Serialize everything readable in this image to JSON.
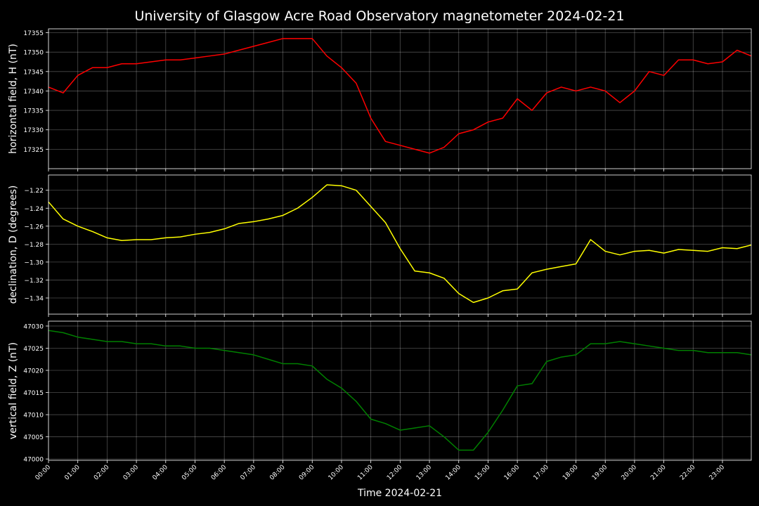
{
  "title": "University of Glasgow Acre Road Observatory magnetometer 2024-02-21",
  "chart_data": [
    {
      "type": "line",
      "ylabel": "horizontal field, H (nT)",
      "color": "#ff0000",
      "grid": true,
      "x": [
        "00:00",
        "00:30",
        "01:00",
        "01:30",
        "02:00",
        "02:30",
        "03:00",
        "03:30",
        "04:00",
        "04:30",
        "05:00",
        "05:30",
        "06:00",
        "06:30",
        "07:00",
        "07:30",
        "08:00",
        "08:30",
        "09:00",
        "09:30",
        "10:00",
        "10:30",
        "11:00",
        "11:30",
        "12:00",
        "12:30",
        "13:00",
        "13:30",
        "14:00",
        "14:30",
        "15:00",
        "15:30",
        "16:00",
        "16:30",
        "17:00",
        "17:30",
        "18:00",
        "18:30",
        "19:00",
        "19:30",
        "20:00",
        "20:30",
        "21:00",
        "21:30",
        "22:00",
        "22:30",
        "23:00",
        "23:30",
        "23:59"
      ],
      "values": [
        17341,
        17339.5,
        17344,
        17346,
        17346,
        17347,
        17347,
        17347.5,
        17348,
        17348,
        17348.5,
        17349,
        17349.5,
        17350.5,
        17351.5,
        17352.5,
        17353.5,
        17353.5,
        17353.5,
        17349,
        17346,
        17342,
        17333,
        17327,
        17326,
        17325,
        17324,
        17325.5,
        17329,
        17330,
        17332,
        17333,
        17338,
        17335,
        17339.5,
        17341,
        17340,
        17341,
        17340,
        17337,
        17340,
        17345,
        17344,
        17348,
        17348,
        17347,
        17347.5,
        17350.5,
        17349
      ],
      "xlim": [
        "00:00",
        "23:59"
      ],
      "xticks": [
        "00:00",
        "01:00",
        "02:00",
        "03:00",
        "04:00",
        "05:00",
        "06:00",
        "07:00",
        "08:00",
        "09:00",
        "10:00",
        "11:00",
        "12:00",
        "13:00",
        "14:00",
        "15:00",
        "16:00",
        "17:00",
        "18:00",
        "19:00",
        "20:00",
        "21:00",
        "22:00",
        "23:00"
      ],
      "ylim": [
        17320,
        17356
      ],
      "yticks": [
        17325,
        17330,
        17335,
        17340,
        17345,
        17350,
        17355
      ]
    },
    {
      "type": "line",
      "ylabel": "declination, D (degrees)",
      "color": "#ffff00",
      "grid": true,
      "x": [
        "00:00",
        "00:30",
        "01:00",
        "01:30",
        "02:00",
        "02:30",
        "03:00",
        "03:30",
        "04:00",
        "04:30",
        "05:00",
        "05:30",
        "06:00",
        "06:30",
        "07:00",
        "07:30",
        "08:00",
        "08:30",
        "09:00",
        "09:30",
        "10:00",
        "10:30",
        "11:00",
        "11:30",
        "12:00",
        "12:30",
        "13:00",
        "13:30",
        "14:00",
        "14:30",
        "15:00",
        "15:30",
        "16:00",
        "16:30",
        "17:00",
        "17:30",
        "18:00",
        "18:30",
        "19:00",
        "19:30",
        "20:00",
        "20:30",
        "21:00",
        "21:30",
        "22:00",
        "22:30",
        "23:00",
        "23:30",
        "23:59"
      ],
      "values": [
        -1.233,
        -1.252,
        -1.26,
        -1.266,
        -1.273,
        -1.276,
        -1.275,
        -1.275,
        -1.273,
        -1.272,
        -1.269,
        -1.267,
        -1.263,
        -1.257,
        -1.255,
        -1.252,
        -1.248,
        -1.24,
        -1.228,
        -1.214,
        -1.215,
        -1.22,
        -1.238,
        -1.256,
        -1.285,
        -1.31,
        -1.312,
        -1.318,
        -1.335,
        -1.345,
        -1.34,
        -1.332,
        -1.33,
        -1.312,
        -1.308,
        -1.305,
        -1.302,
        -1.275,
        -1.288,
        -1.292,
        -1.288,
        -1.287,
        -1.29,
        -1.286,
        -1.287,
        -1.288,
        -1.284,
        -1.285,
        -1.281
      ],
      "xlim": [
        "00:00",
        "23:59"
      ],
      "xticks": [
        "00:00",
        "01:00",
        "02:00",
        "03:00",
        "04:00",
        "05:00",
        "06:00",
        "07:00",
        "08:00",
        "09:00",
        "10:00",
        "11:00",
        "12:00",
        "13:00",
        "14:00",
        "15:00",
        "16:00",
        "17:00",
        "18:00",
        "19:00",
        "20:00",
        "21:00",
        "22:00",
        "23:00"
      ],
      "ylim": [
        -1.358,
        -1.203
      ],
      "yticks": [
        {
          "value": -1.22,
          "label": "−1.22"
        },
        {
          "value": -1.24,
          "label": "−1.24"
        },
        {
          "value": -1.26,
          "label": "−1.26"
        },
        {
          "value": -1.28,
          "label": "−1.28"
        },
        {
          "value": -1.3,
          "label": "−1.30"
        },
        {
          "value": -1.32,
          "label": "−1.32"
        },
        {
          "value": -1.34,
          "label": "−1.34"
        }
      ]
    },
    {
      "type": "line",
      "ylabel": "vertical field, Z (nT)",
      "xlabel": "Time 2024-02-21",
      "color": "#008000",
      "grid": true,
      "x": [
        "00:00",
        "00:30",
        "01:00",
        "01:30",
        "02:00",
        "02:30",
        "03:00",
        "03:30",
        "04:00",
        "04:30",
        "05:00",
        "05:30",
        "06:00",
        "06:30",
        "07:00",
        "07:30",
        "08:00",
        "08:30",
        "09:00",
        "09:30",
        "10:00",
        "10:30",
        "11:00",
        "11:30",
        "12:00",
        "12:30",
        "13:00",
        "13:30",
        "14:00",
        "14:30",
        "15:00",
        "15:30",
        "16:00",
        "16:30",
        "17:00",
        "17:30",
        "18:00",
        "18:30",
        "19:00",
        "19:30",
        "20:00",
        "20:30",
        "21:00",
        "21:30",
        "22:00",
        "22:30",
        "23:00",
        "23:30",
        "23:59"
      ],
      "values": [
        47029,
        47028.5,
        47027.5,
        47027,
        47026.5,
        47026.5,
        47026,
        47026,
        47025.5,
        47025.5,
        47025,
        47025,
        47024.5,
        47024,
        47023.5,
        47022.5,
        47021.5,
        47021.5,
        47021,
        47018,
        47016,
        47013,
        47009,
        47008,
        47006.5,
        47007,
        47007.5,
        47005,
        47002,
        47002,
        47006,
        47011,
        47016.5,
        47017,
        47022,
        47023,
        47023.5,
        47026,
        47026,
        47026.5,
        47026,
        47025.5,
        47025,
        47024.5,
        47024.5,
        47024,
        47024,
        47024,
        47023.5
      ],
      "xlim": [
        "00:00",
        "23:59"
      ],
      "xticks": [
        "00:00",
        "01:00",
        "02:00",
        "03:00",
        "04:00",
        "05:00",
        "06:00",
        "07:00",
        "08:00",
        "09:00",
        "10:00",
        "11:00",
        "12:00",
        "13:00",
        "14:00",
        "15:00",
        "16:00",
        "17:00",
        "18:00",
        "19:00",
        "20:00",
        "21:00",
        "22:00",
        "23:00"
      ],
      "ylim": [
        46999.7,
        47031.1
      ],
      "yticks": [
        47000,
        47005,
        47010,
        47015,
        47020,
        47025,
        47030
      ]
    }
  ]
}
